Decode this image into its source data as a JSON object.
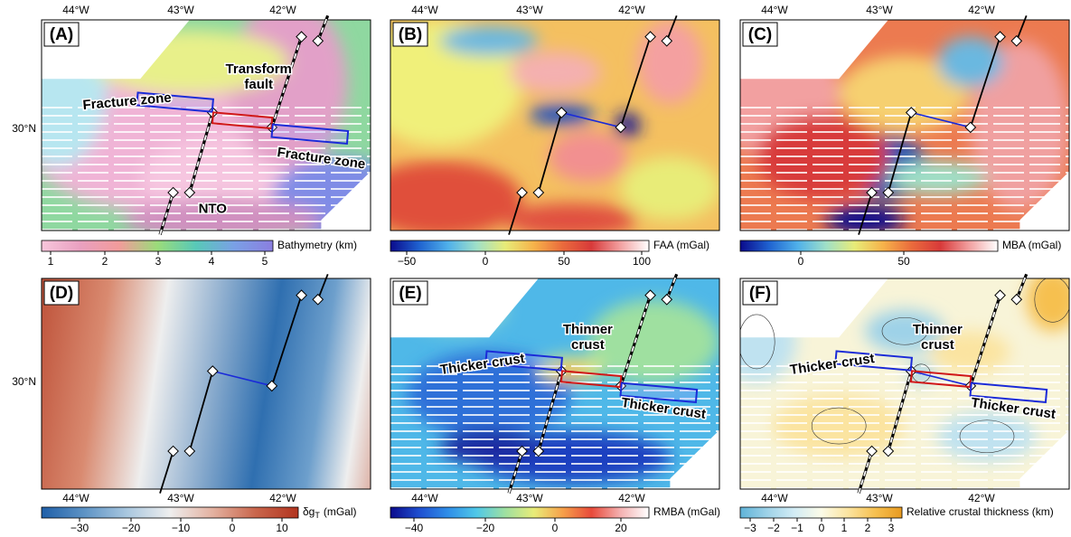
{
  "axes": {
    "lon_labels": [
      "44°W",
      "43°W",
      "42°W"
    ],
    "lat_label": "30°N"
  },
  "panels": [
    {
      "label": "(A)",
      "annotations": [
        "Transform fault",
        "Fracture zone",
        "Fracture zone",
        "NTO"
      ],
      "colorbar": {
        "title": "Bathymetry (km)",
        "ticks": [
          "1",
          "2",
          "3",
          "4",
          "5"
        ]
      }
    },
    {
      "label": "(B)",
      "annotations": [],
      "colorbar": {
        "title": "FAA (mGal)",
        "ticks": [
          "−50",
          "0",
          "50",
          "100"
        ]
      }
    },
    {
      "label": "(C)",
      "annotations": [],
      "colorbar": {
        "title": "MBA (mGal)",
        "ticks": [
          "0",
          "50"
        ]
      }
    },
    {
      "label": "(D)",
      "annotations": [],
      "colorbar": {
        "title_main": "δg",
        "title_sub": "T",
        "title_unit": "(mGal)",
        "ticks": [
          "−30",
          "−20",
          "−10",
          "0",
          "10"
        ]
      }
    },
    {
      "label": "(E)",
      "annotations": [
        "Thinner crust",
        "Thicker crust",
        "Thicker crust"
      ],
      "colorbar": {
        "title": "RMBA (mGal)",
        "ticks": [
          "−40",
          "−20",
          "0",
          "20"
        ]
      }
    },
    {
      "label": "(F)",
      "annotations": [
        "Thinner crust",
        "Thicker crust",
        "Thicker crust"
      ],
      "colorbar": {
        "title": "Relative crustal thickness (km)",
        "ticks": [
          "−3",
          "−2",
          "−1",
          "0",
          "1",
          "2",
          "3"
        ]
      }
    }
  ]
}
